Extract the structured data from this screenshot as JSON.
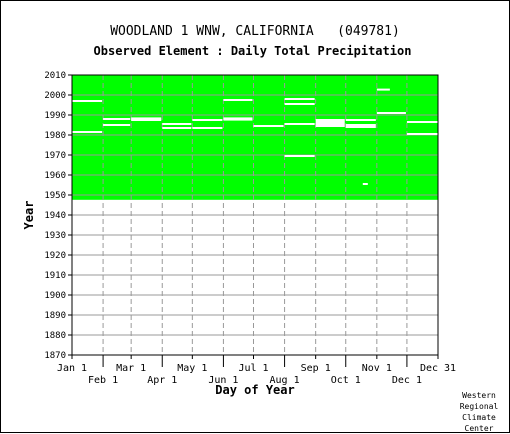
{
  "title": "WOODLAND 1 WNW, CALIFORNIA   (049781)",
  "subtitle": "Observed Element : Daily Total Precipitation",
  "credit": [
    "Western",
    "Regional",
    "Climate",
    "Center"
  ],
  "colors": {
    "data_fill": "#00ff00",
    "missing_lines": "#ffffff",
    "grid": "#999999",
    "background": "#ffffff",
    "text": "#000000"
  },
  "chart_data": {
    "type": "heatmap",
    "title": "WOODLAND 1 WNW, CALIFORNIA   (049781)",
    "subtitle": "Observed Element : Daily Total Precipitation",
    "xlabel": "Day of Year",
    "ylabel": "Year",
    "xlim": [
      1,
      366
    ],
    "ylim": [
      1870,
      2010
    ],
    "x_ticks": [
      {
        "label": "Jan 1",
        "day": 1,
        "row": 0
      },
      {
        "label": "Feb 1",
        "day": 32,
        "row": 1
      },
      {
        "label": "Mar 1",
        "day": 60,
        "row": 0
      },
      {
        "label": "Apr 1",
        "day": 91,
        "row": 1
      },
      {
        "label": "May 1",
        "day": 121,
        "row": 0
      },
      {
        "label": "Jun 1",
        "day": 152,
        "row": 1
      },
      {
        "label": "Jul 1",
        "day": 182,
        "row": 0
      },
      {
        "label": "Aug 1",
        "day": 213,
        "row": 1
      },
      {
        "label": "Sep 1",
        "day": 244,
        "row": 0
      },
      {
        "label": "Oct 1",
        "day": 274,
        "row": 1
      },
      {
        "label": "Nov 1",
        "day": 305,
        "row": 0
      },
      {
        "label": "Dec 1",
        "day": 335,
        "row": 1
      },
      {
        "label": "Dec 31",
        "day": 366,
        "row": 0
      }
    ],
    "y_ticks": [
      "2010",
      "2000",
      "1990",
      "1980",
      "1970",
      "1960",
      "1950",
      "1940",
      "1930",
      "1920",
      "1910",
      "1900",
      "1890",
      "1880",
      "1870"
    ],
    "grid": true,
    "data_period": {
      "start_year": 1947.6,
      "end_year": 2010,
      "start_day": 1,
      "end_day": 366
    },
    "missing": [
      {
        "year": 1997,
        "day_start": 1,
        "day_end": 31
      },
      {
        "year": 1981.5,
        "day_start": 1,
        "day_end": 31
      },
      {
        "year": 1988,
        "day_start": 32,
        "day_end": 59
      },
      {
        "year": 1985,
        "day_start": 32,
        "day_end": 59
      },
      {
        "year": 1988.3,
        "day_start": 60,
        "day_end": 90
      },
      {
        "year": 1987.5,
        "day_start": 60,
        "day_end": 90
      },
      {
        "year": 1985.5,
        "day_start": 91,
        "day_end": 120
      },
      {
        "year": 1983.5,
        "day_start": 91,
        "day_end": 120
      },
      {
        "year": 1987.5,
        "day_start": 121,
        "day_end": 151
      },
      {
        "year": 1983.5,
        "day_start": 121,
        "day_end": 151
      },
      {
        "year": 1997.5,
        "day_start": 152,
        "day_end": 181
      },
      {
        "year": 1988.3,
        "day_start": 152,
        "day_end": 181
      },
      {
        "year": 1987.7,
        "day_start": 152,
        "day_end": 181
      },
      {
        "year": 1984.5,
        "day_start": 182,
        "day_end": 212
      },
      {
        "year": 1998,
        "day_start": 213,
        "day_end": 243
      },
      {
        "year": 1995.5,
        "day_start": 213,
        "day_end": 243
      },
      {
        "year": 1985.5,
        "day_start": 213,
        "day_end": 243
      },
      {
        "year": 1969.5,
        "day_start": 213,
        "day_end": 243
      },
      {
        "year": 1987.5,
        "day_start": 244,
        "day_end": 273
      },
      {
        "year": 1986.5,
        "day_start": 244,
        "day_end": 273
      },
      {
        "year": 1985.5,
        "day_start": 244,
        "day_end": 273
      },
      {
        "year": 1984.5,
        "day_start": 244,
        "day_end": 273
      },
      {
        "year": 1987.5,
        "day_start": 274,
        "day_end": 304
      },
      {
        "year": 1985,
        "day_start": 274,
        "day_end": 304
      },
      {
        "year": 1984,
        "day_start": 274,
        "day_end": 304
      },
      {
        "year": 1955.5,
        "day_start": 291,
        "day_end": 296
      },
      {
        "year": 2002.7,
        "day_start": 305,
        "day_end": 318
      },
      {
        "year": 1991,
        "day_start": 305,
        "day_end": 334
      },
      {
        "year": 1986.5,
        "day_start": 335,
        "day_end": 366
      },
      {
        "year": 1980.5,
        "day_start": 335,
        "day_end": 366
      }
    ]
  }
}
